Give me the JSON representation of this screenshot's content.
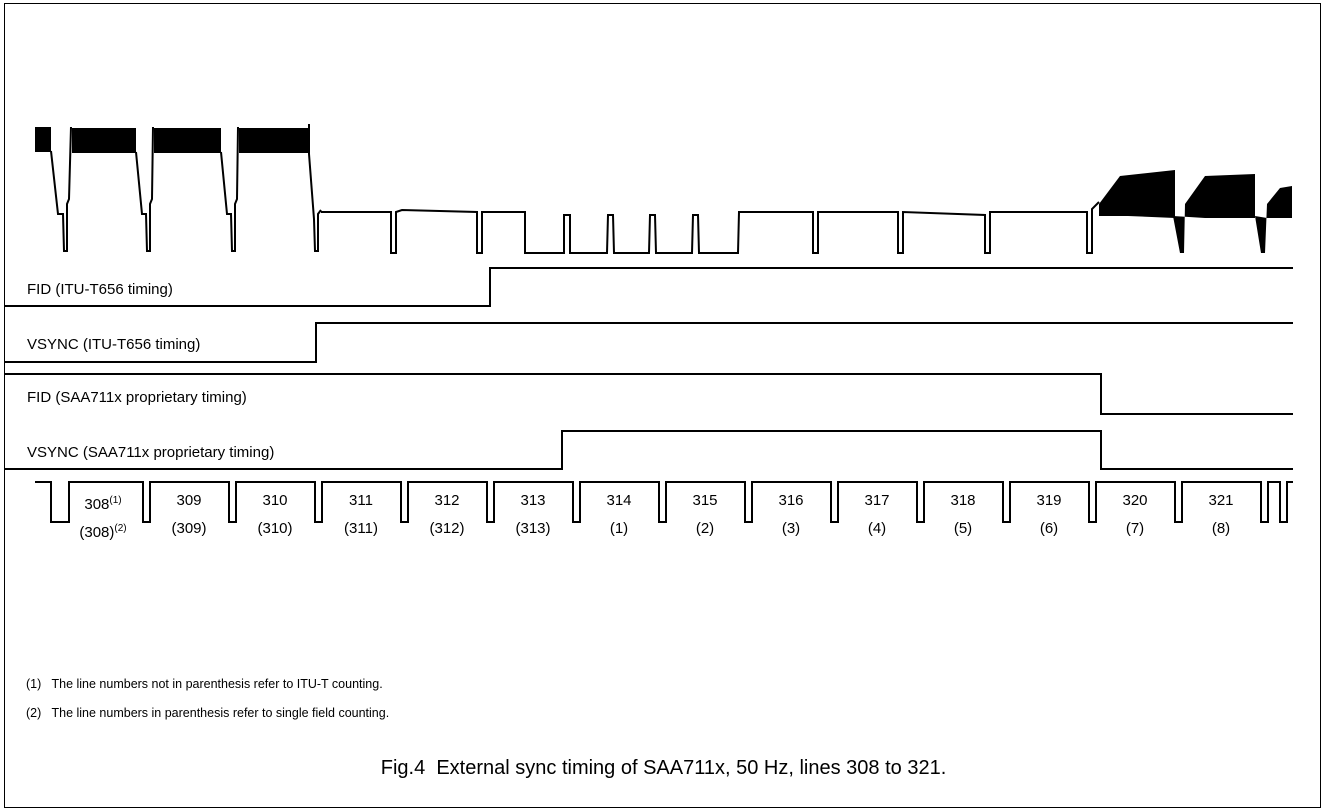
{
  "signals": {
    "fid_itu": "FID (ITU-T656 timing)",
    "vsync_itu": "VSYNC (ITU-T656 timing)",
    "fid_prop": "FID (SAA711x proprietary timing)",
    "vsync_prop": "VSYNC (SAA711x proprietary timing)"
  },
  "line_numbers": [
    {
      "itu": "308",
      "itu_note": "(1)",
      "field": "(308)",
      "field_note": "(2)"
    },
    {
      "itu": "309",
      "field": "(309)"
    },
    {
      "itu": "310",
      "field": "(310)"
    },
    {
      "itu": "311",
      "field": "(311)"
    },
    {
      "itu": "312",
      "field": "(312)"
    },
    {
      "itu": "313",
      "field": "(313)"
    },
    {
      "itu": "314",
      "field": "(1)"
    },
    {
      "itu": "315",
      "field": "(2)"
    },
    {
      "itu": "316",
      "field": "(3)"
    },
    {
      "itu": "317",
      "field": "(4)"
    },
    {
      "itu": "318",
      "field": "(5)"
    },
    {
      "itu": "319",
      "field": "(6)"
    },
    {
      "itu": "320",
      "field": "(7)"
    },
    {
      "itu": "321",
      "field": "(8)"
    }
  ],
  "notes": [
    {
      "marker": "(1)",
      "text": "The line numbers not in parenthesis refer to ITU-T counting."
    },
    {
      "marker": "(2)",
      "text": "The line numbers in parenthesis refer to single field counting."
    }
  ],
  "caption": {
    "figure": "Fig.4",
    "text": "External sync timing of SAA711x, 50 Hz, lines 308 to 321."
  }
}
